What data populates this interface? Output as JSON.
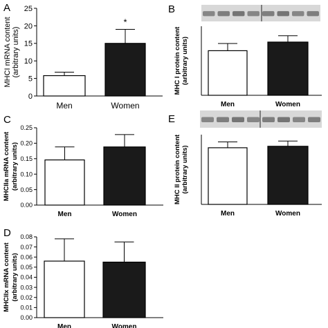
{
  "panels": [
    {
      "letter": "A",
      "ylabel_line1": "MHCI mRNA content",
      "ylabel_line2": "(arbitrary units)",
      "categories": [
        "Men",
        "Women"
      ],
      "significance": "*"
    },
    {
      "letter": "B",
      "ylabel_line1": "MHC I protein content",
      "ylabel_line2": "(arbitrary units)",
      "categories": [
        "Men",
        "Women"
      ],
      "blot": true
    },
    {
      "letter": "C",
      "ylabel_line1": "MHCIIa mRNA content",
      "ylabel_line2": "(arbitrary units)",
      "categories": [
        "Men",
        "Women"
      ]
    },
    {
      "letter": "E",
      "ylabel_line1": "MHC II protein content",
      "ylabel_line2": "(arbitrary units)",
      "categories": [
        "Men",
        "Women"
      ],
      "blot": true
    },
    {
      "letter": "D",
      "ylabel_line1": "MHCIIx mRNA content",
      "ylabel_line2": "(arbitrary units)",
      "categories": [
        "Men",
        "Women"
      ]
    }
  ],
  "colors": {
    "men_bar": "#ffffff",
    "women_bar": "#1a1a1a",
    "axis": "#000000",
    "blot_background": "#d8d8d8",
    "blot_band": "#6b6b6b"
  },
  "chart_data": [
    {
      "panel": "A",
      "type": "bar",
      "categories": [
        "Men",
        "Women"
      ],
      "values": [
        5.8,
        15.0
      ],
      "error": [
        1.0,
        4.0
      ],
      "ylabel": "MHCI mRNA content (arbitrary units)",
      "ylim": [
        0,
        25
      ],
      "yticks": [
        "0",
        "5",
        "10",
        "15",
        "20",
        "25"
      ],
      "grid": false
    },
    {
      "panel": "B",
      "type": "bar",
      "categories": [
        "Men",
        "Women"
      ],
      "values": [
        1.55,
        1.85
      ],
      "error": [
        0.25,
        0.22
      ],
      "ylabel": "MHC I protein content (arbitrary units)",
      "ylim": [
        0,
        2.4
      ],
      "yticks": [],
      "grid": false
    },
    {
      "panel": "C",
      "type": "bar",
      "categories": [
        "Men",
        "Women"
      ],
      "values": [
        0.146,
        0.188
      ],
      "error": [
        0.042,
        0.04
      ],
      "ylabel": "MHCIIa mRNA content (arbitrary units)",
      "ylim": [
        0,
        0.25
      ],
      "yticks": [
        "0.00",
        "0.05",
        "0.10",
        "0.15",
        "0.20",
        "0.25"
      ],
      "grid": false
    },
    {
      "panel": "E",
      "type": "bar",
      "categories": [
        "Men",
        "Women"
      ],
      "values": [
        1.95,
        2.0
      ],
      "error": [
        0.2,
        0.18
      ],
      "ylabel": "MHC II protein content (arbitrary units)",
      "ylim": [
        0,
        2.4
      ],
      "yticks": [],
      "grid": false
    },
    {
      "panel": "D",
      "type": "bar",
      "categories": [
        "Men",
        "Women"
      ],
      "values": [
        0.056,
        0.055
      ],
      "error": [
        0.022,
        0.02
      ],
      "ylabel": "MHCIIx mRNA content (arbitrary units)",
      "ylim": [
        0,
        0.08
      ],
      "yticks": [
        "0.00",
        "0.01",
        "0.02",
        "0.03",
        "0.04",
        "0.05",
        "0.06",
        "0.07",
        "0.08"
      ],
      "grid": false
    }
  ]
}
